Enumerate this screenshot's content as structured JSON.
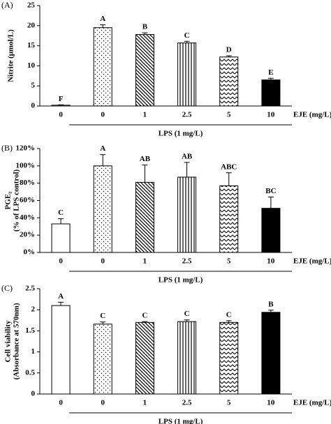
{
  "chart_data": [
    {
      "type": "bar",
      "panel_label": "(A)",
      "ylabel": [
        "Nitrite (μmol/L)"
      ],
      "categories": [
        "0",
        "0",
        "1",
        "2.5",
        "5",
        "10"
      ],
      "x_label": "EJE (mg/L)",
      "group_label": "LPS (1 mg/L)",
      "values": [
        0.2,
        19.5,
        17.8,
        15.7,
        12.2,
        6.5
      ],
      "errors": [
        0.1,
        0.7,
        0.4,
        0.4,
        0.3,
        0.4
      ],
      "annotations": [
        "F",
        "A",
        "B",
        "C",
        "D",
        "E"
      ],
      "ylim": [
        0,
        25
      ],
      "yticks": [
        0,
        5,
        10,
        15,
        20,
        25
      ]
    },
    {
      "type": "bar",
      "panel_label": "(B)",
      "ylabel": [
        "PGE₂",
        "(% of LPS control)"
      ],
      "categories": [
        "0",
        "0",
        "1",
        "2.5",
        "5",
        "10"
      ],
      "x_label": "EJE (mg/L)",
      "group_label": "LPS (1 mg/L)",
      "values": [
        33,
        100,
        81,
        87,
        77,
        51
      ],
      "errors": [
        6,
        13,
        20,
        17,
        15,
        13
      ],
      "annotations": [
        "C",
        "A",
        "AB",
        "AB",
        "ABC",
        "BC"
      ],
      "ylim": [
        0,
        120
      ],
      "yticks": [
        {
          "value": 0,
          "label": "0%"
        },
        {
          "value": 20,
          "label": "20%"
        },
        {
          "value": 40,
          "label": "40%"
        },
        {
          "value": 60,
          "label": "60%"
        },
        {
          "value": 80,
          "label": "80%"
        },
        {
          "value": 100,
          "label": "100%"
        },
        {
          "value": 120,
          "label": "120%"
        }
      ]
    },
    {
      "type": "bar",
      "panel_label": "(C)",
      "ylabel": [
        "Cell viability",
        "(Absorbance at 570nm)"
      ],
      "categories": [
        "0",
        "0",
        "1",
        "2.5",
        "5",
        "10"
      ],
      "x_label": "EJE (mg/L)",
      "group_label": "LPS (1 mg/L)",
      "values": [
        2.1,
        1.66,
        1.7,
        1.72,
        1.7,
        1.94
      ],
      "errors": [
        0.08,
        0.05,
        0.02,
        0.04,
        0.04,
        0.05
      ],
      "annotations": [
        "A",
        "C",
        "C",
        "C",
        "C",
        "B"
      ],
      "ylim": [
        0,
        2.5
      ],
      "yticks": [
        0,
        0.5,
        1,
        1.5,
        2,
        2.5
      ]
    }
  ]
}
